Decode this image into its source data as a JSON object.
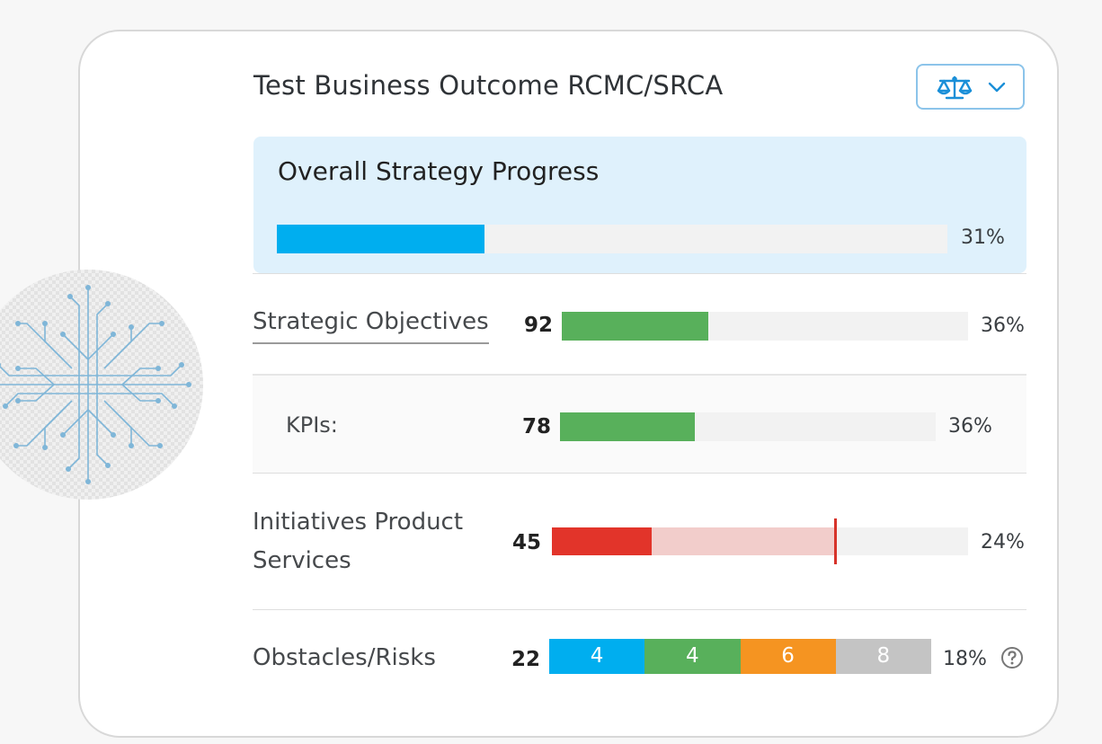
{
  "header": {
    "title": "Test Business Outcome RCMC/SRCA",
    "view_button_icon": "balance-scale-icon",
    "dropdown_icon": "chevron-down-icon"
  },
  "overall": {
    "title": "Overall Strategy Progress",
    "progress": 0.31,
    "percent_label": "31%",
    "color": "#00aeef"
  },
  "rows": {
    "objectives": {
      "label": "Strategic Objectives",
      "count": "92",
      "progress": 0.36,
      "percent_label": "36%",
      "color": "#58b05b"
    },
    "kpis": {
      "label": "KPIs:",
      "count": "78",
      "progress": 0.36,
      "percent_label": "36%",
      "color": "#58b05b"
    },
    "initiatives": {
      "label_line1": "Initiatives Product",
      "label_line2": "Services",
      "count": "45",
      "progress": 0.24,
      "expected": 0.68,
      "percent_label": "24%",
      "color": "#e2342a",
      "expected_color": "#f2cdcb"
    },
    "risks": {
      "label": "Obstacles/Risks",
      "count": "22",
      "percent_label": "18%",
      "segments": [
        {
          "value": "4",
          "color": "#00aeef"
        },
        {
          "value": "4",
          "color": "#58b05b"
        },
        {
          "value": "6",
          "color": "#f59421"
        },
        {
          "value": "8",
          "color": "#c4c4c4"
        }
      ],
      "help_icon": "question-circle-icon"
    }
  },
  "decoration": {
    "icon": "circuit-board-icon"
  }
}
